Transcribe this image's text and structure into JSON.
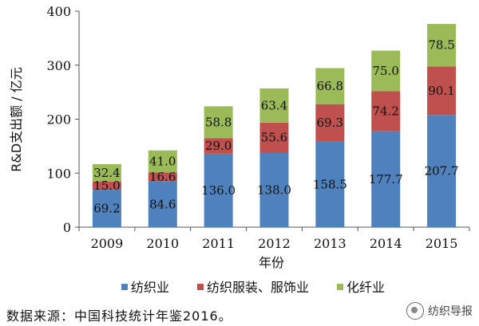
{
  "chart_data": {
    "type": "bar",
    "stacked": true,
    "categories": [
      "2009",
      "2010",
      "2011",
      "2012",
      "2013",
      "2014",
      "2015"
    ],
    "series": [
      {
        "name": "纺织业",
        "color": "#4F81BD",
        "values": [
          69.2,
          84.6,
          136.0,
          138.0,
          158.5,
          177.7,
          207.7
        ],
        "labels": [
          "69.2",
          "84.6",
          "136.0",
          "138.0",
          "158.5",
          "177.7",
          "207.7"
        ]
      },
      {
        "name": "纺织服装、服饰业",
        "color": "#C0504D",
        "values": [
          15.0,
          16.6,
          29.0,
          55.6,
          69.3,
          74.2,
          90.1
        ],
        "labels": [
          "15.0",
          "16.6",
          "29.0",
          "55.6",
          "69.3",
          "74.2",
          "90.1"
        ]
      },
      {
        "name": "化纤业",
        "color": "#9BBB59",
        "values": [
          32.4,
          41.0,
          58.8,
          63.4,
          66.8,
          75.0,
          78.5
        ],
        "labels": [
          "32.4",
          "41.0",
          "58.8",
          "63.4",
          "66.8",
          "75.0",
          "78.5"
        ]
      }
    ],
    "xlabel": "年份",
    "ylabel": "R&D支出额 / 亿元",
    "ylim": [
      0,
      400
    ],
    "yticks": [
      "0",
      "100",
      "200",
      "300",
      "400"
    ],
    "grid": false,
    "legend_position": "bottom"
  },
  "source_note": "数据来源：中国科技统计年鉴2016。",
  "watermark": {
    "text": "纺织导报",
    "icon": "wechat-official-account-icon"
  }
}
